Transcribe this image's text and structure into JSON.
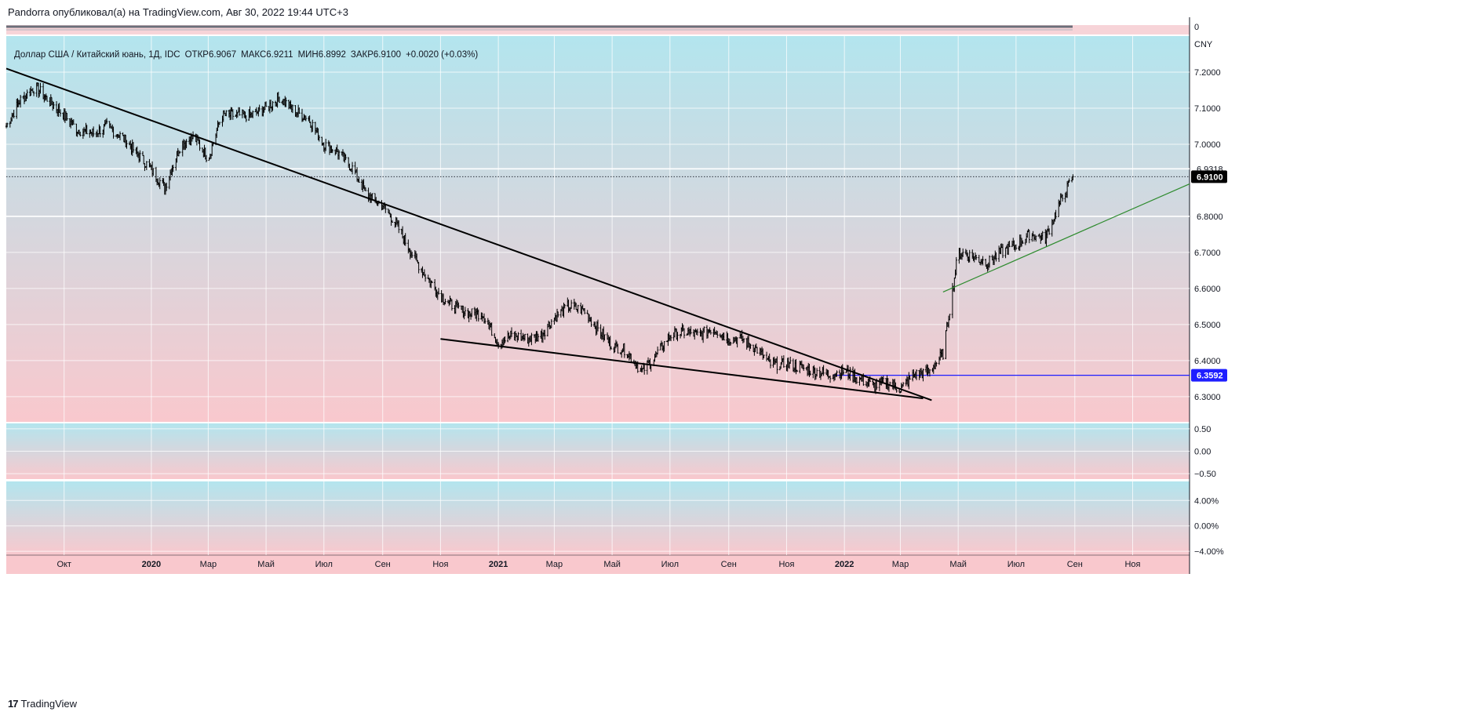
{
  "header": {
    "publish_line": "Pandorra опубликовал(а) на TradingView.com, Авг 30, 2022 19:44 UTC+3"
  },
  "legend": {
    "symbol": "Доллар США / Китайский юань, 1Д, IDC",
    "open": "ОТКР6.9067",
    "high": "МАКС6.9211",
    "low": "МИН6.8992",
    "close": "ЗАКР6.9100",
    "change": "+0.0020 (+0.03%)"
  },
  "footer": {
    "logo_glyph": "17",
    "brand": "TradingView"
  },
  "colors": {
    "gradient_top": "#b3e5ee",
    "gradient_bottom": "#f9c8cd",
    "candle": "#000000",
    "trendline": "#000000",
    "green_line": "#2e8b2e",
    "support_line": "#1e1eff",
    "last_price_bg": "#000000",
    "support_label_bg": "#1e1eff",
    "top_bar": "#6b6f7a"
  },
  "chart_data": {
    "type": "candlestick",
    "currency": "CNY",
    "price_axis": {
      "ylim": [
        6.23,
        7.3
      ],
      "ticks": [
        "7.2000",
        "7.1000",
        "7.0000",
        "6.8000",
        "6.7000",
        "6.6000",
        "6.5000",
        "6.4000",
        "6.3000"
      ],
      "tick_values": [
        7.2,
        7.1,
        7.0,
        6.8,
        6.7,
        6.6,
        6.5,
        6.4,
        6.3
      ]
    },
    "time_axis": {
      "labels": [
        "Окт",
        "2020",
        "Мар",
        "Май",
        "Июл",
        "Сен",
        "Ноя",
        "2021",
        "Мар",
        "Май",
        "Июл",
        "Сен",
        "Ноя",
        "2022",
        "Мар",
        "Май",
        "Июл",
        "Сен",
        "Ноя"
      ],
      "bold": [
        "2020",
        "2021",
        "2022"
      ],
      "dates": [
        "2019-10-01",
        "2020-01-01",
        "2020-03-01",
        "2020-05-01",
        "2020-07-01",
        "2020-09-01",
        "2020-11-01",
        "2021-01-01",
        "2021-03-01",
        "2021-05-01",
        "2021-07-01",
        "2021-09-01",
        "2021-11-01",
        "2022-01-01",
        "2022-03-01",
        "2022-05-01",
        "2022-07-01",
        "2022-09-01",
        "2022-11-01"
      ],
      "range": [
        "2019-08-01",
        "2022-12-31"
      ]
    },
    "series": [
      {
        "name": "USDCNY",
        "x": [
          "2019-08-01",
          "2019-08-15",
          "2019-09-01",
          "2019-09-15",
          "2019-10-01",
          "2019-10-15",
          "2019-11-01",
          "2019-11-15",
          "2019-12-01",
          "2019-12-15",
          "2020-01-01",
          "2020-01-15",
          "2020-02-01",
          "2020-02-15",
          "2020-03-01",
          "2020-03-15",
          "2020-04-01",
          "2020-04-15",
          "2020-05-01",
          "2020-05-15",
          "2020-06-01",
          "2020-06-15",
          "2020-07-01",
          "2020-07-15",
          "2020-08-01",
          "2020-08-15",
          "2020-09-01",
          "2020-09-15",
          "2020-10-01",
          "2020-10-15",
          "2020-11-01",
          "2020-11-15",
          "2020-12-01",
          "2020-12-15",
          "2021-01-01",
          "2021-01-15",
          "2021-02-01",
          "2021-02-15",
          "2021-03-01",
          "2021-03-15",
          "2021-04-01",
          "2021-04-15",
          "2021-05-01",
          "2021-05-15",
          "2021-06-01",
          "2021-06-15",
          "2021-07-01",
          "2021-07-15",
          "2021-08-01",
          "2021-08-15",
          "2021-09-01",
          "2021-09-15",
          "2021-10-01",
          "2021-10-15",
          "2021-11-01",
          "2021-11-15",
          "2021-12-01",
          "2021-12-15",
          "2022-01-01",
          "2022-01-15",
          "2022-02-01",
          "2022-02-15",
          "2022-03-01",
          "2022-03-15",
          "2022-04-01",
          "2022-04-15",
          "2022-05-01",
          "2022-05-15",
          "2022-06-01",
          "2022-06-15",
          "2022-07-01",
          "2022-07-15",
          "2022-08-01",
          "2022-08-15",
          "2022-08-30"
        ],
        "close": [
          7.05,
          7.12,
          7.16,
          7.12,
          7.08,
          7.04,
          7.03,
          7.05,
          7.02,
          6.98,
          6.93,
          6.88,
          7.0,
          7.02,
          6.96,
          7.08,
          7.08,
          7.08,
          7.1,
          7.13,
          7.09,
          7.07,
          7.0,
          6.98,
          6.93,
          6.86,
          6.83,
          6.78,
          6.7,
          6.64,
          6.58,
          6.55,
          6.53,
          6.53,
          6.45,
          6.47,
          6.46,
          6.47,
          6.52,
          6.55,
          6.54,
          6.49,
          6.44,
          6.43,
          6.37,
          6.41,
          6.47,
          6.48,
          6.47,
          6.49,
          6.46,
          6.46,
          6.43,
          6.39,
          6.39,
          6.38,
          6.37,
          6.36,
          6.37,
          6.35,
          6.33,
          6.34,
          6.32,
          6.36,
          6.37,
          6.42,
          6.7,
          6.69,
          6.67,
          6.7,
          6.72,
          6.75,
          6.74,
          6.83,
          6.91
        ]
      }
    ],
    "last_price": {
      "value": 6.91,
      "label": "6.9100"
    },
    "levels": [
      {
        "value": 6.9318,
        "label": "6.9318",
        "kind": "horizontal_line"
      },
      {
        "value": 6.8,
        "label": "6.8000",
        "kind": "horizontal_line"
      },
      {
        "value": 6.3592,
        "label": "6.3592",
        "kind": "horizontal_line"
      }
    ],
    "trendlines": [
      {
        "kind": "descending",
        "from": [
          "2019-08-01",
          7.21
        ],
        "to": [
          "2022-04-03",
          6.29
        ]
      },
      {
        "kind": "lower",
        "from": [
          "2020-11-01",
          6.46
        ],
        "to": [
          "2022-03-25",
          6.295
        ]
      },
      {
        "kind": "ascending",
        "from": [
          "2022-04-15",
          6.59
        ],
        "to": [
          "2022-12-31",
          6.89
        ]
      }
    ],
    "top_scale": {
      "tick": "0"
    },
    "oscillator_1": {
      "ticks": [
        "0.50",
        "0.00",
        "−0.50"
      ],
      "tick_values": [
        0.5,
        0.0,
        -0.5
      ],
      "ylim": [
        -0.62,
        0.62
      ]
    },
    "oscillator_2": {
      "ticks": [
        "4.00%",
        "0.00%",
        "−4.00%"
      ],
      "tick_values": [
        4,
        0,
        -4
      ],
      "ylim": [
        -4.6,
        7.0
      ]
    }
  }
}
